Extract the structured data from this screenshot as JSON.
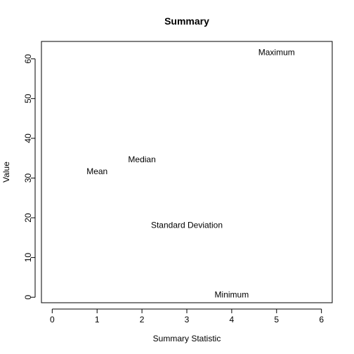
{
  "chart_data": {
    "type": "scatter",
    "title": "Summary",
    "xlabel": "Summary Statistic",
    "ylabel": "Value",
    "xlim": [
      -0.24,
      6.24
    ],
    "ylim": [
      -1.38,
      64.38
    ],
    "x_ticks": [
      0,
      1,
      2,
      3,
      4,
      5,
      6
    ],
    "y_ticks": [
      0,
      10,
      20,
      30,
      40,
      50,
      60
    ],
    "grid": false,
    "legend": "none",
    "points": [
      {
        "label": "Mean",
        "x": 1,
        "y": 31.5
      },
      {
        "label": "Median",
        "x": 2,
        "y": 34.5
      },
      {
        "label": "Standard Deviation",
        "x": 3,
        "y": 18
      },
      {
        "label": "Minimum",
        "x": 4,
        "y": 0.5
      },
      {
        "label": "Maximum",
        "x": 5,
        "y": 61.5
      }
    ]
  }
}
